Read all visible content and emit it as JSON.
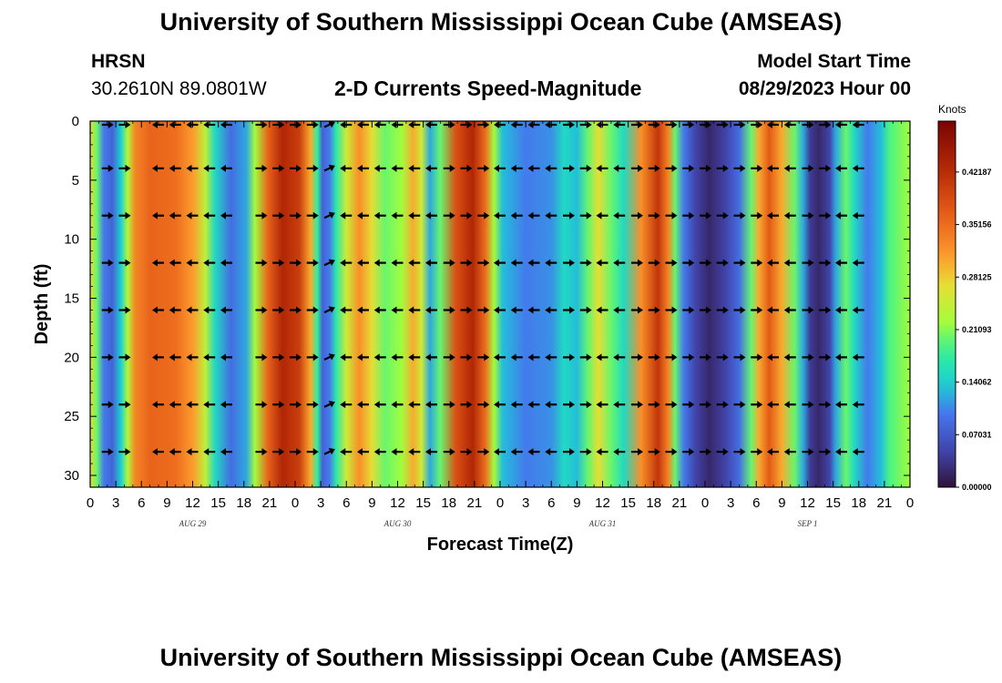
{
  "header": {
    "title": "University of Southern Mississippi Ocean Cube (AMSEAS)",
    "station": "HRSN",
    "coords": "30.2610N  89.0801W",
    "subtitle": "2-D Currents Speed-Magnitude",
    "start_label": "Model Start Time",
    "start_time": "08/29/2023 Hour 00"
  },
  "footer": {
    "title": "University of Southern Mississippi Ocean Cube (AMSEAS)"
  },
  "colorbar": {
    "unit": "Knots",
    "ticks": [
      "0.00000",
      "0.07031",
      "0.14062",
      "0.21093",
      "0.28125",
      "0.35156",
      "0.42187"
    ],
    "tick_values": [
      0.0,
      0.07031,
      0.14062,
      0.21093,
      0.28125,
      0.35156,
      0.42187
    ],
    "max": 0.49
  },
  "chart_data": {
    "type": "heatmap",
    "title": "2-D Currents Speed-Magnitude",
    "xlabel": "Forecast Time(Z)",
    "ylabel": "Depth (ft)",
    "units": "Knots",
    "xlim": [
      0,
      96
    ],
    "ylim": [
      31,
      0
    ],
    "x_tick_values": [
      0,
      3,
      6,
      9,
      12,
      15,
      18,
      21,
      24,
      27,
      30,
      33,
      36,
      39,
      42,
      45,
      48,
      51,
      54,
      57,
      60,
      63,
      66,
      69,
      72,
      75,
      78,
      81,
      84,
      87,
      90,
      93,
      96
    ],
    "x_tick_labels": [
      "0",
      "3",
      "6",
      "9",
      "12",
      "15",
      "18",
      "21",
      "0",
      "3",
      "6",
      "9",
      "12",
      "15",
      "18",
      "21",
      "0",
      "3",
      "6",
      "9",
      "12",
      "15",
      "18",
      "21",
      "0",
      "3",
      "6",
      "9",
      "12",
      "15",
      "18",
      "21",
      "0"
    ],
    "y_ticks": [
      0,
      5,
      10,
      15,
      20,
      25,
      30
    ],
    "y_tick_labels": [
      "0",
      "5",
      "10",
      "15",
      "20",
      "25",
      "30"
    ],
    "day_labels": [
      {
        "label": "AUG 29",
        "hour": 12
      },
      {
        "label": "AUG 30",
        "hour": 36
      },
      {
        "label": "AUG 31",
        "hour": 60
      },
      {
        "label": "SEP 1",
        "hour": 84
      }
    ],
    "speed_profile": [
      {
        "hour": 0,
        "knots": 0.27
      },
      {
        "hour": 0.8,
        "knots": 0.2
      },
      {
        "hour": 1.6,
        "knots": 0.1
      },
      {
        "hour": 2.6,
        "knots": 0.08
      },
      {
        "hour": 3.6,
        "knots": 0.14
      },
      {
        "hour": 4.4,
        "knots": 0.23
      },
      {
        "hour": 5.3,
        "knots": 0.33
      },
      {
        "hour": 7,
        "knots": 0.36
      },
      {
        "hour": 10,
        "knots": 0.35
      },
      {
        "hour": 12,
        "knots": 0.31
      },
      {
        "hour": 13.5,
        "knots": 0.24
      },
      {
        "hour": 14.6,
        "knots": 0.15
      },
      {
        "hour": 16.5,
        "knots": 0.09
      },
      {
        "hour": 18.3,
        "knots": 0.12
      },
      {
        "hour": 19.3,
        "knots": 0.22
      },
      {
        "hour": 20.8,
        "knots": 0.36
      },
      {
        "hour": 22.5,
        "knots": 0.43
      },
      {
        "hour": 24.5,
        "knots": 0.4
      },
      {
        "hour": 25.8,
        "knots": 0.3
      },
      {
        "hour": 26.6,
        "knots": 0.18
      },
      {
        "hour": 27.2,
        "knots": 0.08
      },
      {
        "hour": 28,
        "knots": 0.1
      },
      {
        "hour": 28.8,
        "knots": 0.17
      },
      {
        "hour": 30,
        "knots": 0.25
      },
      {
        "hour": 31.5,
        "knots": 0.32
      },
      {
        "hour": 33,
        "knots": 0.27
      },
      {
        "hour": 34.5,
        "knots": 0.2
      },
      {
        "hour": 36.5,
        "knots": 0.22
      },
      {
        "hour": 37.8,
        "knots": 0.3
      },
      {
        "hour": 38.8,
        "knots": 0.25
      },
      {
        "hour": 39.8,
        "knots": 0.12
      },
      {
        "hour": 41,
        "knots": 0.2
      },
      {
        "hour": 42.8,
        "knots": 0.38
      },
      {
        "hour": 44.8,
        "knots": 0.43
      },
      {
        "hour": 46.3,
        "knots": 0.35
      },
      {
        "hour": 47.3,
        "knots": 0.22
      },
      {
        "hour": 48.3,
        "knots": 0.13
      },
      {
        "hour": 51,
        "knots": 0.1
      },
      {
        "hour": 54,
        "knots": 0.11
      },
      {
        "hour": 55.5,
        "knots": 0.15
      },
      {
        "hour": 57,
        "knots": 0.13
      },
      {
        "hour": 58.3,
        "knots": 0.2
      },
      {
        "hour": 59.5,
        "knots": 0.27
      },
      {
        "hour": 61,
        "knots": 0.2
      },
      {
        "hour": 62.5,
        "knots": 0.15
      },
      {
        "hour": 64.5,
        "knots": 0.32
      },
      {
        "hour": 66.5,
        "knots": 0.41
      },
      {
        "hour": 67.7,
        "knots": 0.33
      },
      {
        "hour": 68.5,
        "knots": 0.2
      },
      {
        "hour": 69.5,
        "knots": 0.1
      },
      {
        "hour": 70.8,
        "knots": 0.05
      },
      {
        "hour": 72.5,
        "knots": 0.02
      },
      {
        "hour": 74.5,
        "knots": 0.05
      },
      {
        "hour": 76,
        "knots": 0.09
      },
      {
        "hour": 77.4,
        "knots": 0.2
      },
      {
        "hour": 78.3,
        "knots": 0.3
      },
      {
        "hour": 79.5,
        "knots": 0.37
      },
      {
        "hour": 81,
        "knots": 0.3
      },
      {
        "hour": 82.5,
        "knots": 0.2
      },
      {
        "hour": 83.5,
        "knots": 0.12
      },
      {
        "hour": 84.3,
        "knots": 0.04
      },
      {
        "hour": 85.3,
        "knots": 0.02
      },
      {
        "hour": 86.6,
        "knots": 0.05
      },
      {
        "hour": 87.3,
        "knots": 0.12
      },
      {
        "hour": 88.5,
        "knots": 0.2
      },
      {
        "hour": 89.5,
        "knots": 0.15
      },
      {
        "hour": 91,
        "knots": 0.1
      },
      {
        "hour": 92.6,
        "knots": 0.13
      },
      {
        "hour": 93.6,
        "knots": 0.19
      },
      {
        "hour": 96,
        "knots": 0.22
      }
    ],
    "vector_depths": [
      0,
      4,
      8,
      12,
      16,
      20,
      24,
      28
    ],
    "vector_hours": [
      2,
      4,
      8,
      10,
      12,
      14,
      16,
      20,
      22,
      24,
      26,
      28,
      30,
      32,
      34,
      36,
      38,
      40,
      42,
      44,
      46,
      48,
      50,
      52,
      54,
      56,
      58,
      60,
      62,
      64,
      66,
      68,
      70,
      72,
      74,
      76,
      78,
      80,
      82,
      84,
      86,
      88,
      90
    ],
    "vector_directions": [
      {
        "from_hour": 0,
        "to_hour": 5.2,
        "deg": 0
      },
      {
        "from_hour": 5.2,
        "to_hour": 18.2,
        "deg": 180
      },
      {
        "from_hour": 18.2,
        "to_hour": 27.2,
        "deg": 0
      },
      {
        "from_hour": 27.2,
        "to_hour": 29.2,
        "deg": 25
      },
      {
        "from_hour": 29.2,
        "to_hour": 41.2,
        "deg": 180
      },
      {
        "from_hour": 41.2,
        "to_hour": 47.2,
        "deg": 0
      },
      {
        "from_hour": 47.2,
        "to_hour": 54.2,
        "deg": 180
      },
      {
        "from_hour": 54.2,
        "to_hour": 59.2,
        "deg": 0
      },
      {
        "from_hour": 59.2,
        "to_hour": 62.2,
        "deg": 180
      },
      {
        "from_hour": 62.2,
        "to_hour": 79.2,
        "deg": 0
      },
      {
        "from_hour": 79.2,
        "to_hour": 83.2,
        "deg": 180
      },
      {
        "from_hour": 83.2,
        "to_hour": 87.2,
        "deg": 0
      },
      {
        "from_hour": 87.2,
        "to_hour": 96,
        "deg": 180
      }
    ]
  }
}
